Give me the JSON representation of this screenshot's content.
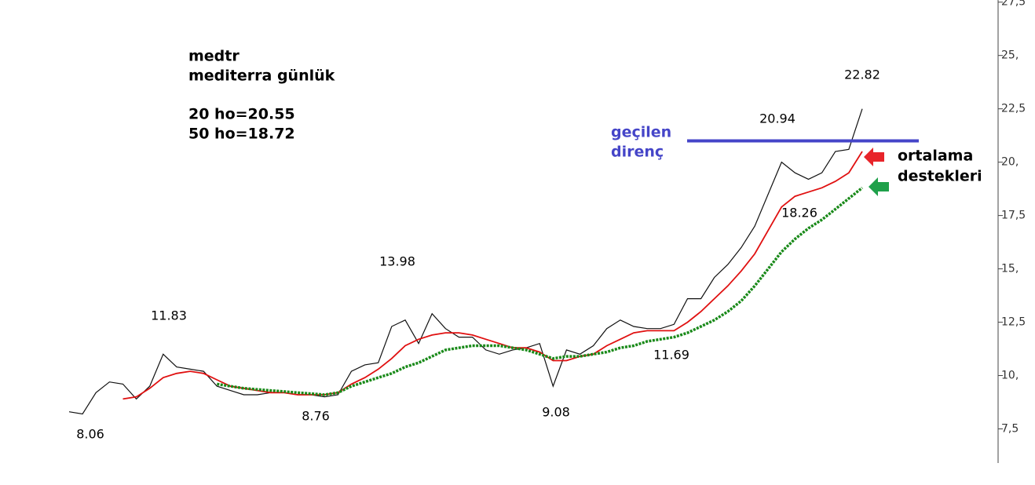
{
  "chart_data": {
    "type": "line",
    "info": [
      "medtr",
      "mediterra günlük",
      "20 ho=20.55",
      "50 ho=18.72"
    ],
    "resistance_label": [
      "geçilen",
      "direnç"
    ],
    "support_label": [
      "ortalama",
      "destekleri"
    ],
    "annotations": [
      "8.06",
      "11.83",
      "8.76",
      "13.98",
      "9.08",
      "11.69",
      "18.26",
      "20.94",
      "22.82"
    ],
    "resistance": 21,
    "categories": [
      null,
      null,
      null,
      null,
      null,
      null,
      null,
      null,
      null,
      null,
      null,
      null,
      null,
      null,
      null,
      null,
      null,
      null,
      null,
      null,
      null,
      null,
      null,
      null,
      null,
      null,
      null,
      null,
      null,
      null,
      null,
      null,
      null,
      null,
      null,
      null,
      null,
      null,
      null,
      null,
      null,
      null,
      null,
      null,
      null,
      null,
      null,
      null,
      null,
      null,
      null,
      null,
      null,
      null,
      null,
      null,
      null,
      null,
      null,
      null
    ],
    "series": [
      {
        "color": "#111111",
        "values": [
          8.3,
          8.2,
          9.2,
          9.7,
          9.6,
          8.9,
          9.5,
          11.0,
          10.4,
          10.3,
          10.2,
          9.5,
          9.3,
          9.1,
          9.1,
          9.2,
          9.2,
          9.1,
          9.1,
          9.0,
          9.1,
          10.2,
          10.5,
          10.6,
          12.3,
          12.6,
          11.5,
          12.9,
          12.2,
          11.8,
          11.8,
          11.2,
          11.0,
          11.2,
          11.3,
          11.5,
          9.5,
          11.2,
          11.0,
          11.4,
          12.2,
          12.6,
          12.3,
          12.2,
          12.2,
          12.4,
          13.6,
          13.6,
          14.6,
          15.2,
          16.0,
          17.0,
          18.5,
          20.0,
          19.5,
          19.2,
          19.5,
          20.5,
          20.6,
          22.5
        ]
      },
      {
        "color": "#e01010",
        "values": [
          null,
          null,
          null,
          null,
          8.9,
          9.0,
          9.4,
          9.9,
          10.1,
          10.2,
          10.1,
          9.8,
          9.5,
          9.4,
          9.3,
          9.2,
          9.2,
          9.1,
          9.1,
          9.1,
          9.2,
          9.6,
          9.9,
          10.3,
          10.8,
          11.4,
          11.7,
          11.9,
          12.0,
          12.0,
          11.9,
          11.7,
          11.5,
          11.3,
          11.3,
          11.1,
          10.7,
          10.7,
          10.9,
          11.0,
          11.4,
          11.7,
          12.0,
          12.1,
          12.1,
          12.1,
          12.5,
          13.0,
          13.6,
          14.2,
          14.9,
          15.7,
          16.8,
          17.9,
          18.4,
          18.6,
          18.8,
          19.1,
          19.5,
          20.5
        ]
      },
      {
        "color": "#1a8a1a",
        "values": [
          null,
          null,
          null,
          null,
          null,
          null,
          null,
          null,
          null,
          null,
          null,
          9.6,
          9.5,
          9.4,
          9.35,
          9.3,
          9.25,
          9.2,
          9.15,
          9.1,
          9.2,
          9.5,
          9.7,
          9.9,
          10.1,
          10.4,
          10.6,
          10.9,
          11.2,
          11.3,
          11.4,
          11.4,
          11.4,
          11.3,
          11.2,
          11.0,
          10.8,
          10.9,
          10.9,
          11.0,
          11.1,
          11.3,
          11.4,
          11.6,
          11.7,
          11.8,
          12.0,
          12.3,
          12.6,
          13.0,
          13.5,
          14.2,
          15.0,
          15.8,
          16.4,
          16.9,
          17.3,
          17.8,
          18.3,
          18.8
        ]
      }
    ],
    "ylim": [
      5.9,
      27.6
    ],
    "yticks": [
      {
        "value": 7.5,
        "label": "7,5"
      },
      {
        "value": 10,
        "label": "10,"
      },
      {
        "value": 12.5,
        "label": "12,5"
      },
      {
        "value": 15,
        "label": "15,"
      },
      {
        "value": 17.5,
        "label": "17,5"
      },
      {
        "value": 20,
        "label": "20,"
      },
      {
        "value": 22.5,
        "label": "22,5"
      },
      {
        "value": 25,
        "label": "25,"
      },
      {
        "value": 27.5,
        "label": "27,5"
      }
    ]
  }
}
